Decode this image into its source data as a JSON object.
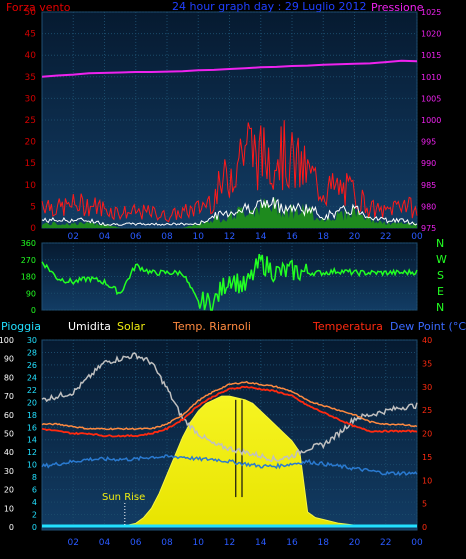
{
  "header": {
    "wind_label": "Forza vento",
    "title": "24 hour graph day : 29 Luglio 2012",
    "pressure_label": "Pressione"
  },
  "direction_letters": [
    "N",
    "W",
    "S",
    "E",
    "N"
  ],
  "sun_rise_label": "Sun Rise",
  "bottom_header": {
    "rain": "Pioggia",
    "humidity": "Umidita",
    "solar": "Solar",
    "heat_index": "Temp. Riarnoli",
    "temperature": "Temperatura",
    "dew_point": "Dew Point (°C)"
  },
  "colors": {
    "wind_gust": "#ff1a1a",
    "wind_avg": "#ffffff",
    "wind_fill": "#1e8a1e",
    "pressure": "#ee22ee",
    "direction": "#22ff22",
    "humidity": "#c0c0c0",
    "solar": "#f0ee10",
    "temperature": "#ff2a10",
    "heat_index": "#ff8a40",
    "dew_point": "#2a7ad0",
    "rain": "#22e0ff",
    "grid": "#1a4a6a",
    "plot_bg_top": "#0a2540",
    "plot_bg_bottom": "#10355a",
    "axis_left": "#d00000",
    "axis_blue": "#3a6aff"
  },
  "chart_data": [
    {
      "type": "line",
      "name": "wind_pressure",
      "x_ticks": [
        "02",
        "04",
        "06",
        "08",
        "10",
        "12",
        "14",
        "16",
        "18",
        "20",
        "22",
        "00"
      ],
      "y_left": {
        "label": "Forza vento",
        "range": [
          0,
          50
        ],
        "ticks": [
          "0",
          "5",
          "10",
          "15",
          "20",
          "25",
          "30",
          "35",
          "40",
          "45",
          "50"
        ]
      },
      "y_right": {
        "label": "Pressione",
        "range": [
          975,
          1025
        ],
        "ticks": [
          "975",
          "980",
          "985",
          "990",
          "995",
          "1000",
          "1005",
          "1010",
          "1015",
          "1020",
          "1025"
        ]
      },
      "x_hours": [
        0,
        1,
        2,
        3,
        4,
        5,
        6,
        7,
        8,
        9,
        10,
        11,
        12,
        13,
        14,
        15,
        16,
        17,
        18,
        19,
        20,
        21,
        22,
        23,
        24
      ],
      "pressure": [
        1010.0,
        1010.3,
        1010.5,
        1010.8,
        1010.9,
        1011.0,
        1011.1,
        1011.1,
        1011.2,
        1011.3,
        1011.5,
        1011.6,
        1011.8,
        1012.0,
        1012.2,
        1012.3,
        1012.5,
        1012.6,
        1012.8,
        1012.9,
        1013.0,
        1013.1,
        1013.4,
        1013.7,
        1013.6
      ],
      "wind_gust": [
        7,
        5,
        6,
        6,
        5,
        4,
        4,
        4,
        3,
        4,
        5,
        8,
        14,
        22,
        18,
        20,
        17,
        14,
        10,
        10,
        9,
        5,
        4,
        7,
        4
      ],
      "wind_avg": [
        2,
        2,
        2,
        2,
        1,
        1,
        1,
        1,
        1,
        1,
        1,
        3,
        4,
        5,
        6,
        6,
        5,
        5,
        3,
        4,
        5,
        3,
        2,
        2,
        1
      ],
      "wind_fill": [
        1,
        1,
        1,
        1,
        1,
        0,
        0,
        0,
        0,
        0,
        1,
        2,
        3,
        4,
        5,
        5,
        4,
        4,
        2,
        3,
        4,
        2,
        1,
        1,
        1
      ]
    },
    {
      "type": "line",
      "name": "wind_direction",
      "x_ticks": [
        "02",
        "04",
        "06",
        "08",
        "10",
        "12",
        "14",
        "16",
        "18",
        "20",
        "22",
        "00"
      ],
      "y_ticks": [
        "0",
        "90",
        "180",
        "270",
        "360"
      ],
      "y_range": [
        0,
        360
      ],
      "x_hours": [
        0,
        1,
        2,
        3,
        4,
        5,
        6,
        7,
        8,
        9,
        10,
        11,
        12,
        13,
        14,
        15,
        16,
        17,
        18,
        19,
        20,
        21,
        22,
        23,
        24
      ],
      "direction": [
        260,
        170,
        150,
        170,
        150,
        90,
        240,
        200,
        200,
        200,
        40,
        40,
        180,
        120,
        260,
        200,
        210,
        200,
        200,
        210,
        200,
        200,
        200,
        200,
        205
      ]
    },
    {
      "type": "line",
      "name": "temperature_humidity_solar",
      "x_ticks": [
        "02",
        "04",
        "06",
        "08",
        "10",
        "12",
        "14",
        "16",
        "18",
        "20",
        "22",
        "00"
      ],
      "y_rain": {
        "label": "Pioggia",
        "range": [
          0,
          100
        ],
        "ticks": [
          "0",
          "10",
          "20",
          "30",
          "40",
          "50",
          "60",
          "70",
          "80",
          "90",
          "100"
        ]
      },
      "y_humidity": {
        "label": "Umidita",
        "range": [
          0,
          30
        ],
        "ticks": [
          "0",
          "2",
          "4",
          "6",
          "8",
          "10",
          "12",
          "14",
          "16",
          "18",
          "20",
          "22",
          "24",
          "26",
          "28",
          "30"
        ]
      },
      "y_temp": {
        "label": "Temperatura",
        "range": [
          0,
          40
        ],
        "ticks": [
          "0",
          "5",
          "10",
          "15",
          "20",
          "25",
          "30",
          "35",
          "40"
        ]
      },
      "x_hours": [
        0,
        1,
        2,
        3,
        4,
        5,
        6,
        7,
        8,
        9,
        10,
        11,
        12,
        13,
        14,
        15,
        16,
        17,
        18,
        19,
        20,
        21,
        22,
        23,
        24
      ],
      "humidity": [
        68,
        70,
        72,
        80,
        88,
        90,
        92,
        88,
        74,
        58,
        50,
        44,
        42,
        40,
        38,
        36,
        38,
        42,
        44,
        50,
        58,
        60,
        62,
        64,
        65
      ],
      "temperature": [
        21,
        20.5,
        20,
        20,
        19.5,
        19.5,
        19.5,
        20,
        21,
        23,
        26,
        28,
        29.5,
        30,
        29.5,
        29,
        28,
        26,
        24.5,
        23,
        21.5,
        20.5,
        20.5,
        20.5,
        20.5
      ],
      "heat_index": [
        22,
        22,
        21.5,
        21,
        21,
        21,
        21,
        21,
        22,
        24,
        27,
        29,
        30.5,
        31,
        30.5,
        30,
        29,
        27,
        26,
        25,
        24,
        22.5,
        22,
        22,
        21.5
      ],
      "dew_point": [
        13,
        13.5,
        14,
        14.5,
        14.5,
        14.5,
        14.5,
        15,
        15,
        15,
        14.5,
        14.5,
        14,
        13.5,
        13,
        13,
        13.5,
        14,
        13.5,
        13,
        12.5,
        12,
        11.5,
        11.5,
        11.5
      ],
      "solar_hours": [
        5,
        5.5,
        6,
        6.5,
        7,
        7.5,
        8,
        8.5,
        9,
        9.5,
        10,
        10.5,
        11,
        11.5,
        12,
        12.5,
        13,
        13.5,
        14,
        14.5,
        15,
        15.5,
        16,
        16.5,
        17,
        17.5,
        18,
        19,
        20,
        21
      ],
      "solar": [
        0,
        1,
        2,
        5,
        10,
        18,
        28,
        38,
        48,
        56,
        62,
        66,
        68,
        70,
        70,
        69,
        68,
        66,
        62,
        58,
        54,
        50,
        46,
        40,
        8,
        5,
        4,
        2,
        1,
        0
      ],
      "rain": [
        0,
        0,
        0,
        0,
        0,
        0,
        0,
        0,
        0,
        0,
        0,
        0,
        0,
        0,
        0,
        0,
        0,
        0,
        0,
        0,
        0,
        0,
        0,
        0,
        0
      ],
      "sun_rise_hour": 5.3
    }
  ]
}
